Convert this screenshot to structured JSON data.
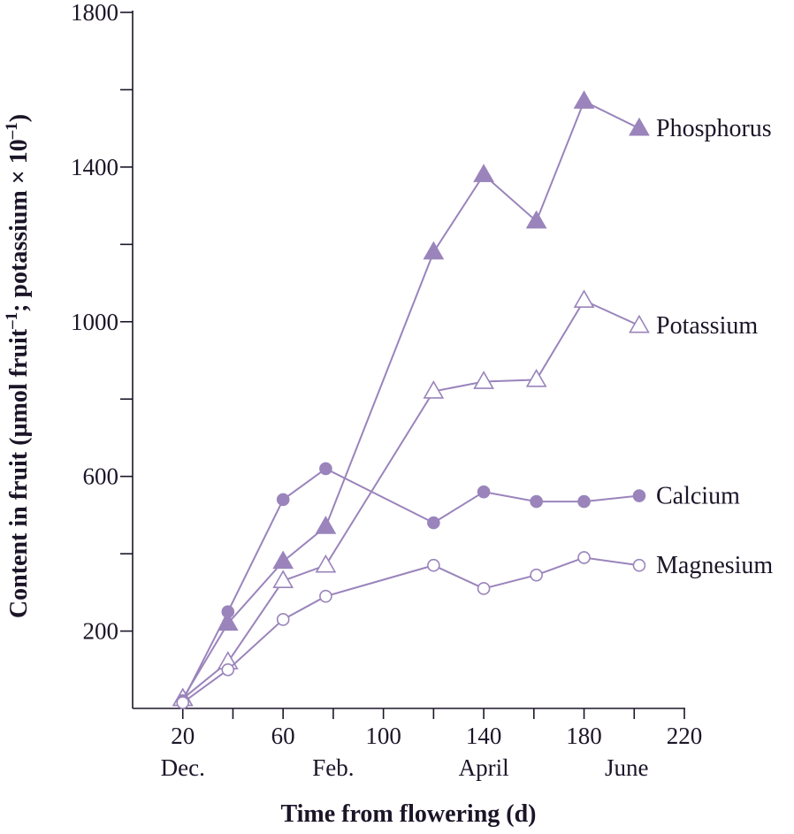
{
  "chart_data": {
    "type": "line",
    "title": "",
    "xlabel": "Time from flowering (d)",
    "ylabel": "Content in fruit (µmol fruit",
    "ylabel_sup1": "–1",
    "ylabel_mid": "; potassium × 10",
    "ylabel_sup2": "–1",
    "ylabel_end": ")",
    "xlim": [
      0,
      220
    ],
    "ylim": [
      0,
      1800
    ],
    "x_ticks": [
      20,
      60,
      100,
      140,
      180,
      220
    ],
    "y_ticks_labeled": [
      200,
      600,
      1000,
      1400,
      1800
    ],
    "y_ticks_minor": [
      400,
      800,
      1200,
      1600
    ],
    "x_ticks_minor": [
      40,
      80,
      120,
      160,
      200
    ],
    "months": [
      {
        "label": "Dec.",
        "x": 20
      },
      {
        "label": "Feb.",
        "x": 80
      },
      {
        "label": "April",
        "x": 140
      },
      {
        "label": "June",
        "x": 197
      }
    ],
    "grid": false,
    "legend": "labels at right end of each series",
    "line_color": "#9a84bb",
    "series": [
      {
        "name": "Phosphorus",
        "marker": "triangle-filled",
        "x": [
          20,
          38,
          60,
          77,
          120,
          140,
          161,
          180,
          202
        ],
        "y": [
          25,
          220,
          380,
          470,
          1180,
          1380,
          1260,
          1570,
          1500
        ]
      },
      {
        "name": "Potassium",
        "marker": "triangle-open",
        "x": [
          20,
          38,
          60,
          77,
          120,
          140,
          161,
          180,
          202
        ],
        "y": [
          25,
          120,
          330,
          370,
          820,
          845,
          850,
          1055,
          990
        ]
      },
      {
        "name": "Calcium",
        "marker": "circle-filled",
        "x": [
          20,
          38,
          60,
          77,
          120,
          140,
          161,
          180,
          202
        ],
        "y": [
          20,
          250,
          540,
          620,
          480,
          560,
          535,
          535,
          550
        ]
      },
      {
        "name": "Magnesium",
        "marker": "circle-open",
        "x": [
          20,
          38,
          60,
          77,
          120,
          140,
          161,
          180,
          202
        ],
        "y": [
          15,
          100,
          230,
          290,
          370,
          310,
          345,
          390,
          370
        ]
      }
    ]
  }
}
